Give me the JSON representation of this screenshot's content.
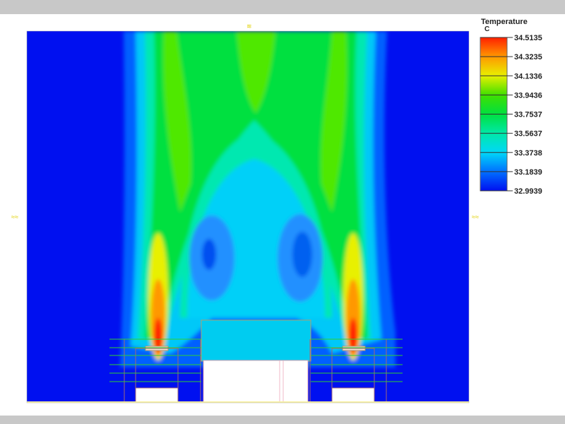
{
  "chart_data": {
    "type": "heatmap",
    "title": "Temperature",
    "unit": "C",
    "colorbar": {
      "levels": [
        "34.5135",
        "34.3235",
        "34.1336",
        "33.9436",
        "33.7537",
        "33.5637",
        "33.3738",
        "33.1839",
        "32.9939"
      ],
      "band_colors": [
        "#ff2000",
        "#ff9800",
        "#e8f000",
        "#40e000",
        "#00e040",
        "#00e8a8",
        "#00d8f8",
        "#0070ff",
        "#0010f0"
      ],
      "min": 32.9939,
      "max": 34.5135,
      "position": "right"
    },
    "field_description_colors": {
      "background": "#0010f0",
      "obstacle": "#ffffff",
      "outline": "#a06878",
      "grid_line": "#30d030"
    }
  }
}
